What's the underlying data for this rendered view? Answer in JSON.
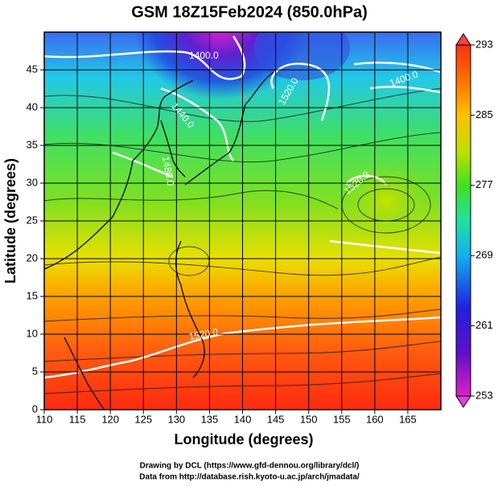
{
  "chart_data": {
    "type": "map",
    "title": "GSM 18Z15Feb2024 (850.0hPa)",
    "xlabel": "Longitude (degrees)",
    "ylabel": "Latitude  (degrees)",
    "xlim": [
      110,
      170
    ],
    "xticks": [
      110,
      115,
      120,
      125,
      130,
      135,
      140,
      145,
      150,
      155,
      160,
      165
    ],
    "ylim": [
      0,
      50
    ],
    "yticks": [
      0,
      5,
      10,
      15,
      20,
      25,
      30,
      35,
      40,
      45
    ],
    "grid": true,
    "colorbar": {
      "lim": [
        253,
        293
      ],
      "ticks": [
        253,
        261,
        269,
        277,
        285,
        293
      ]
    },
    "contour_labels": [
      "1400.0",
      "1440.0",
      "1480.0",
      "1520.0",
      "1400.0",
      "1520.0",
      "1520.0"
    ],
    "credits": [
      "Drawing by DCL (https://www.gfd-dennou.org/library/dcl/)",
      "Data from http://database.rish.kyoto-u.ac.jp/arch/jmadata/"
    ]
  }
}
